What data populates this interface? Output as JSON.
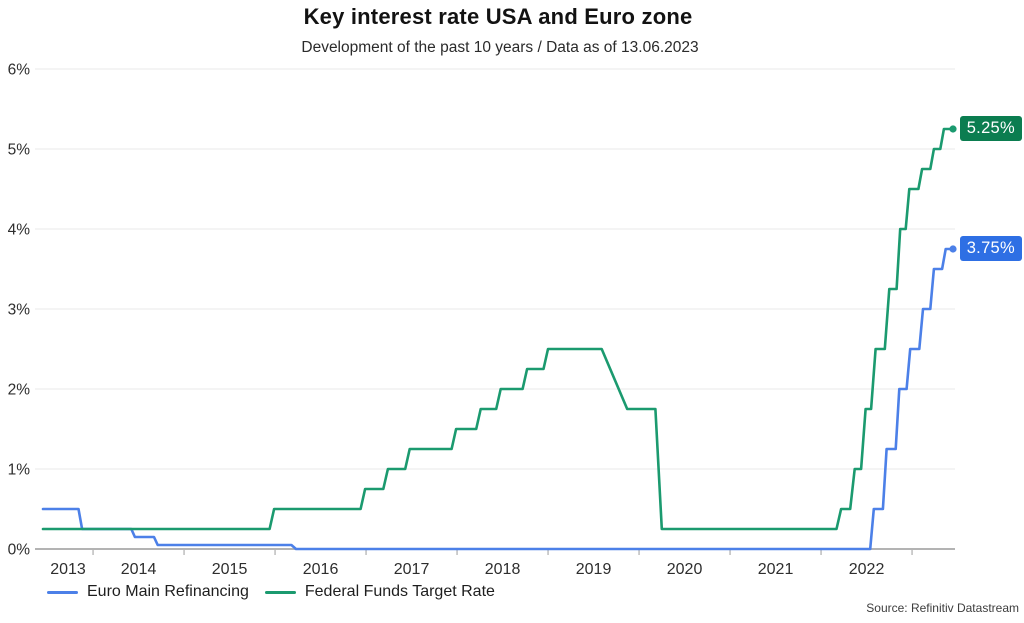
{
  "chart_data": {
    "type": "line",
    "title": "Key interest rate USA and Euro zone",
    "subtitle": "Development of the past 10 years / Data as of 13.06.2023",
    "source": "Source: Refinitiv Datastream",
    "x_domain": [
      2013.45,
      2023.45
    ],
    "y_domain": [
      0,
      6
    ],
    "grid": "horizontal",
    "legend_position": "bottom-left",
    "y_ticks": [
      {
        "value": 0,
        "label": "0%"
      },
      {
        "value": 1,
        "label": "1%"
      },
      {
        "value": 2,
        "label": "2%"
      },
      {
        "value": 3,
        "label": "3%"
      },
      {
        "value": 4,
        "label": "4%"
      },
      {
        "value": 5,
        "label": "5%"
      },
      {
        "value": 6,
        "label": "6%"
      }
    ],
    "x_ticks": [
      {
        "year": 2013,
        "label": "2013"
      },
      {
        "year": 2014,
        "label": "2014"
      },
      {
        "year": 2015,
        "label": "2015"
      },
      {
        "year": 2016,
        "label": "2016"
      },
      {
        "year": 2017,
        "label": "2017"
      },
      {
        "year": 2018,
        "label": "2018"
      },
      {
        "year": 2019,
        "label": "2019"
      },
      {
        "year": 2020,
        "label": "2020"
      },
      {
        "year": 2021,
        "label": "2021"
      },
      {
        "year": 2022,
        "label": "2022"
      }
    ],
    "series": [
      {
        "name": "Euro Main Refinancing",
        "color": "#4c80e8",
        "badge_color": "#2e6fe4",
        "end_label": "3.75%",
        "end_value": 3.75,
        "points": [
          [
            2013.45,
            0.5
          ],
          [
            2013.84,
            0.5
          ],
          [
            2013.88,
            0.25
          ],
          [
            2014.42,
            0.25
          ],
          [
            2014.46,
            0.15
          ],
          [
            2014.67,
            0.15
          ],
          [
            2014.71,
            0.05
          ],
          [
            2016.18,
            0.05
          ],
          [
            2016.23,
            0.0
          ],
          [
            2022.54,
            0.0
          ],
          [
            2022.58,
            0.5
          ],
          [
            2022.68,
            0.5
          ],
          [
            2022.72,
            1.25
          ],
          [
            2022.82,
            1.25
          ],
          [
            2022.86,
            2.0
          ],
          [
            2022.94,
            2.0
          ],
          [
            2022.98,
            2.5
          ],
          [
            2023.08,
            2.5
          ],
          [
            2023.12,
            3.0
          ],
          [
            2023.2,
            3.0
          ],
          [
            2023.24,
            3.5
          ],
          [
            2023.33,
            3.5
          ],
          [
            2023.37,
            3.75
          ],
          [
            2023.45,
            3.75
          ]
        ]
      },
      {
        "name": "Federal Funds Target Rate",
        "color": "#1b9a6f",
        "badge_color": "#0b7d50",
        "end_label": "5.25%",
        "end_value": 5.25,
        "points": [
          [
            2013.45,
            0.25
          ],
          [
            2015.94,
            0.25
          ],
          [
            2015.99,
            0.5
          ],
          [
            2016.94,
            0.5
          ],
          [
            2016.99,
            0.75
          ],
          [
            2017.19,
            0.75
          ],
          [
            2017.24,
            1.0
          ],
          [
            2017.43,
            1.0
          ],
          [
            2017.48,
            1.25
          ],
          [
            2017.94,
            1.25
          ],
          [
            2017.99,
            1.5
          ],
          [
            2018.21,
            1.5
          ],
          [
            2018.26,
            1.75
          ],
          [
            2018.43,
            1.75
          ],
          [
            2018.48,
            2.0
          ],
          [
            2018.72,
            2.0
          ],
          [
            2018.77,
            2.25
          ],
          [
            2018.95,
            2.25
          ],
          [
            2019.0,
            2.5
          ],
          [
            2019.59,
            2.5
          ],
          [
            2019.87,
            1.75
          ],
          [
            2020.18,
            1.75
          ],
          [
            2020.25,
            0.25
          ],
          [
            2022.17,
            0.25
          ],
          [
            2022.22,
            0.5
          ],
          [
            2022.32,
            0.5
          ],
          [
            2022.37,
            1.0
          ],
          [
            2022.44,
            1.0
          ],
          [
            2022.49,
            1.75
          ],
          [
            2022.55,
            1.75
          ],
          [
            2022.6,
            2.5
          ],
          [
            2022.7,
            2.5
          ],
          [
            2022.75,
            3.25
          ],
          [
            2022.83,
            3.25
          ],
          [
            2022.87,
            4.0
          ],
          [
            2022.93,
            4.0
          ],
          [
            2022.97,
            4.5
          ],
          [
            2023.07,
            4.5
          ],
          [
            2023.11,
            4.75
          ],
          [
            2023.2,
            4.75
          ],
          [
            2023.24,
            5.0
          ],
          [
            2023.31,
            5.0
          ],
          [
            2023.35,
            5.25
          ],
          [
            2023.45,
            5.25
          ]
        ]
      }
    ],
    "colors": {
      "gridline": "#f1f1f1",
      "axis": "#b3b3b3",
      "tick_label": "#2e2e2e"
    }
  }
}
